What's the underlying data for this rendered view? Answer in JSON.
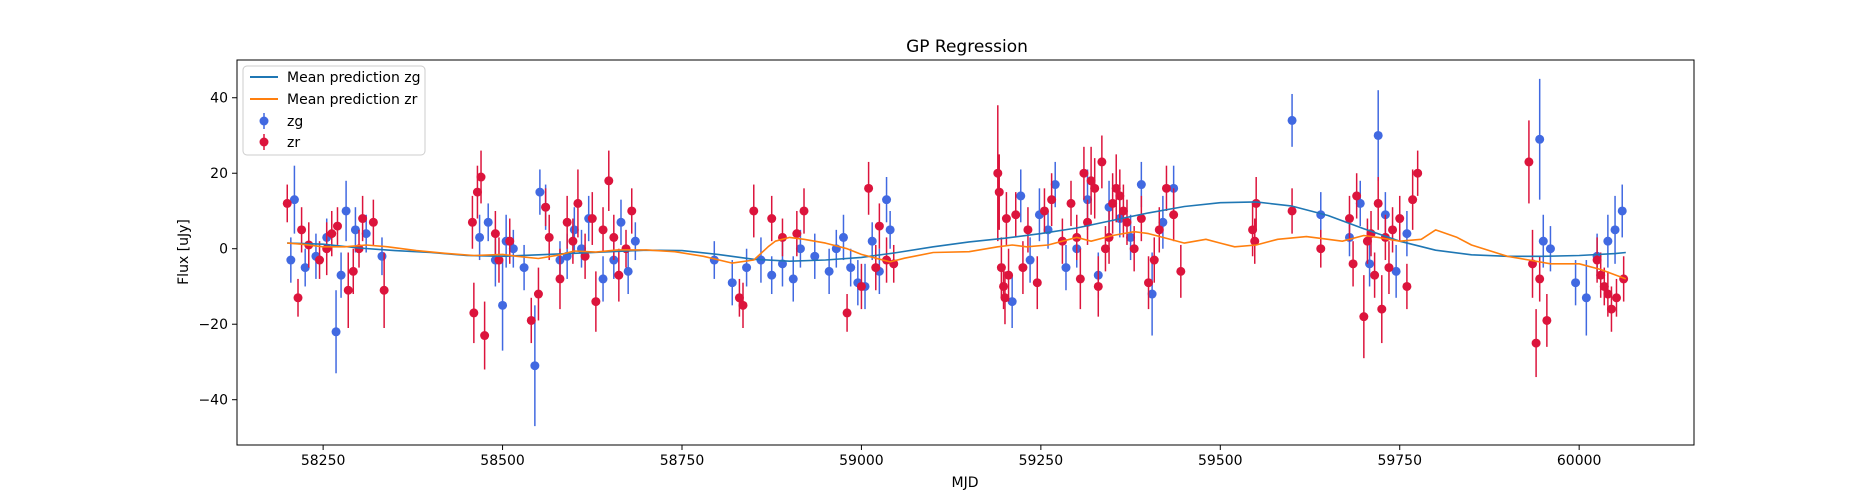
{
  "chart_data": {
    "type": "scatter",
    "title": "GP Regression",
    "xlabel": "MJD",
    "ylabel": "Flux [uJy]",
    "xlim": [
      58130,
      60160
    ],
    "ylim": [
      -52,
      50
    ],
    "xticks": [
      58250,
      58500,
      58750,
      59000,
      59250,
      59500,
      59750,
      60000
    ],
    "yticks": [
      -40,
      -20,
      0,
      20,
      40
    ],
    "grid": false,
    "legend_position": "top-left",
    "colors": {
      "zg_line": "#1f77b4",
      "zr_line": "#ff7f0e",
      "zg_points": "#4169e1",
      "zr_points": "#dc143c"
    },
    "lines": [
      {
        "name": "Mean prediction zg",
        "x": [
          58200,
          58250,
          58300,
          58350,
          58400,
          58450,
          58500,
          58550,
          58600,
          58650,
          58700,
          58750,
          58800,
          58850,
          58900,
          58950,
          59000,
          59050,
          59100,
          59150,
          59200,
          59250,
          59300,
          59350,
          59400,
          59450,
          59500,
          59550,
          59600,
          59650,
          59700,
          59750,
          59800,
          59850,
          59900,
          59950,
          60000,
          60050,
          60065
        ],
        "y": [
          1.5,
          1.2,
          0.2,
          -0.5,
          -1.0,
          -1.8,
          -2.0,
          -1.6,
          -1.2,
          -0.8,
          -0.4,
          -0.5,
          -1.5,
          -2.8,
          -3.3,
          -3.0,
          -2.3,
          -1.0,
          0.5,
          1.8,
          2.8,
          4.0,
          5.5,
          7.5,
          9.5,
          11.2,
          12.2,
          12.4,
          11.3,
          8.8,
          5.3,
          2.0,
          -0.4,
          -1.6,
          -2.0,
          -2.0,
          -1.8,
          -1.3,
          -1.0
        ]
      },
      {
        "name": "Mean prediction zr",
        "x": [
          58200,
          58220,
          58250,
          58280,
          58310,
          58340,
          58380,
          58420,
          58460,
          58500,
          58520,
          58550,
          58580,
          58600,
          58630,
          58660,
          58700,
          58740,
          58780,
          58820,
          58850,
          58870,
          58880,
          58900,
          58920,
          58950,
          58980,
          59000,
          59020,
          59040,
          59060,
          59100,
          59150,
          59190,
          59210,
          59230,
          59260,
          59290,
          59300,
          59320,
          59350,
          59380,
          59400,
          59420,
          59450,
          59480,
          59500,
          59520,
          59550,
          59580,
          59620,
          59650,
          59670,
          59700,
          59720,
          59750,
          59780,
          59800,
          59830,
          59850,
          59900,
          59930,
          59960,
          60000,
          60030,
          60065
        ],
        "y": [
          1.5,
          1.2,
          0.5,
          0.5,
          1.0,
          0.5,
          -0.5,
          -1.2,
          -1.8,
          -1.5,
          -2.0,
          -2.6,
          -1.6,
          -0.6,
          -0.9,
          -0.3,
          -0.3,
          -0.8,
          -2.0,
          -3.8,
          -3.0,
          0.5,
          2.0,
          3.0,
          2.5,
          1.5,
          0.0,
          -1.5,
          -2.5,
          -3.5,
          -2.5,
          -1.0,
          -0.8,
          0.5,
          1.0,
          0.5,
          1.0,
          2.5,
          3.0,
          2.0,
          3.5,
          4.5,
          4.0,
          3.0,
          1.5,
          2.5,
          1.5,
          0.5,
          1.0,
          2.5,
          3.2,
          2.5,
          2.0,
          3.5,
          3.0,
          2.0,
          2.5,
          5.0,
          3.0,
          1.0,
          -2.0,
          -3.0,
          -4.0,
          -4.0,
          -5.5,
          -8.0
        ]
      }
    ],
    "series": [
      {
        "name": "zg",
        "x": [
          58205,
          58210,
          58225,
          58240,
          58255,
          58268,
          58275,
          58282,
          58295,
          58310,
          58332,
          58468,
          58480,
          58490,
          58500,
          58505,
          58515,
          58530,
          58545,
          58552,
          58560,
          58580,
          58590,
          58600,
          58610,
          58620,
          58640,
          58655,
          58665,
          58675,
          58685,
          58795,
          58820,
          58840,
          58860,
          58875,
          58890,
          58905,
          58915,
          58935,
          58955,
          58965,
          58975,
          58985,
          58995,
          59005,
          59015,
          59025,
          59035,
          59040,
          59210,
          59222,
          59235,
          59248,
          59260,
          59270,
          59285,
          59300,
          59315,
          59330,
          59345,
          59360,
          59375,
          59390,
          59405,
          59420,
          59435,
          59600,
          59640,
          59680,
          59695,
          59708,
          59720,
          59730,
          59745,
          59760,
          59945,
          59950,
          59960,
          59995,
          60010,
          60025,
          60040,
          60050,
          60060
        ],
        "y": [
          -3,
          13,
          -5,
          -2,
          3,
          -22,
          -7,
          10,
          5,
          4,
          -2,
          3,
          7,
          -3,
          -15,
          2,
          0,
          -5,
          -31,
          15,
          11,
          -3,
          -2,
          5,
          0,
          8,
          -8,
          -3,
          7,
          -6,
          2,
          -3,
          -9,
          -5,
          -3,
          -7,
          -4,
          -8,
          0,
          -2,
          -6,
          0,
          3,
          -5,
          -9,
          -10,
          2,
          -6,
          13,
          5,
          -14,
          14,
          -3,
          9,
          5,
          17,
          -5,
          0,
          13,
          -7,
          11,
          8,
          3,
          17,
          -12,
          7,
          16,
          34,
          9,
          3,
          12,
          -4,
          30,
          9,
          -6,
          4,
          29,
          2,
          0,
          -9,
          -13,
          -2,
          2,
          5,
          10
        ],
        "err": [
          6,
          9,
          5,
          6,
          5,
          11,
          6,
          8,
          6,
          5,
          5,
          6,
          5,
          7,
          12,
          7,
          5,
          6,
          16,
          6,
          6,
          5,
          6,
          6,
          5,
          6,
          6,
          5,
          6,
          6,
          5,
          5,
          6,
          5,
          6,
          5,
          6,
          6,
          5,
          6,
          6,
          5,
          6,
          5,
          6,
          6,
          5,
          6,
          6,
          5,
          7,
          7,
          6,
          7,
          5,
          6,
          6,
          5,
          8,
          6,
          7,
          5,
          6,
          6,
          11,
          7,
          6,
          7,
          6,
          5,
          6,
          6,
          12,
          6,
          7,
          6,
          16,
          7,
          6,
          6,
          10,
          6,
          7,
          9,
          7
        ]
      },
      {
        "name": "zr",
        "x": [
          58200,
          58215,
          58220,
          58230,
          58245,
          58255,
          58262,
          58270,
          58285,
          58292,
          58300,
          58305,
          58320,
          58335,
          58458,
          58460,
          58465,
          58470,
          58475,
          58490,
          58495,
          58510,
          58540,
          58550,
          58560,
          58565,
          58580,
          58590,
          58598,
          58605,
          58615,
          58625,
          58630,
          58640,
          58648,
          58655,
          58662,
          58672,
          58680,
          58830,
          58835,
          58850,
          58875,
          58890,
          58910,
          58920,
          58980,
          59000,
          59010,
          59020,
          59025,
          59035,
          59045,
          59190,
          59192,
          59195,
          59198,
          59200,
          59202,
          59205,
          59215,
          59225,
          59232,
          59245,
          59255,
          59265,
          59280,
          59292,
          59300,
          59305,
          59310,
          59315,
          59320,
          59325,
          59330,
          59335,
          59340,
          59345,
          59350,
          59355,
          59360,
          59365,
          59370,
          59380,
          59390,
          59400,
          59408,
          59415,
          59425,
          59435,
          59445,
          59545,
          59548,
          59550,
          59600,
          59640,
          59680,
          59685,
          59690,
          59700,
          59705,
          59710,
          59715,
          59720,
          59725,
          59730,
          59735,
          59740,
          59750,
          59760,
          59768,
          59775,
          59930,
          59935,
          59940,
          59945,
          59955,
          60025,
          60030,
          60035,
          60040,
          60045,
          60052,
          60062
        ],
        "y": [
          12,
          -13,
          5,
          1,
          -3,
          0,
          4,
          6,
          -11,
          -6,
          0,
          8,
          7,
          -11,
          7,
          -17,
          15,
          19,
          -23,
          4,
          -3,
          2,
          -19,
          -12,
          11,
          3,
          -8,
          7,
          2,
          12,
          -2,
          8,
          -14,
          5,
          18,
          3,
          -7,
          0,
          10,
          -13,
          -15,
          10,
          8,
          3,
          4,
          10,
          -17,
          -10,
          16,
          -5,
          6,
          -3,
          -4,
          20,
          15,
          -5,
          -10,
          -13,
          8,
          -7,
          9,
          -5,
          5,
          -9,
          10,
          13,
          2,
          12,
          3,
          -8,
          20,
          7,
          18,
          16,
          -10,
          23,
          0,
          3,
          12,
          16,
          14,
          10,
          7,
          0,
          8,
          -9,
          -3,
          5,
          16,
          9,
          -6,
          5,
          2,
          12,
          10,
          0,
          8,
          -4,
          14,
          -18,
          2,
          4,
          -7,
          12,
          -16,
          3,
          -5,
          5,
          8,
          -10,
          13,
          20,
          23,
          -4,
          -25,
          -8,
          -19,
          -3,
          -7,
          -10,
          -12,
          -16,
          -13,
          -8
        ],
        "err": [
          5,
          5,
          6,
          6,
          5,
          7,
          6,
          5,
          10,
          6,
          5,
          6,
          6,
          10,
          7,
          8,
          7,
          7,
          9,
          6,
          6,
          6,
          6,
          7,
          5,
          6,
          8,
          7,
          6,
          9,
          6,
          7,
          8,
          6,
          8,
          6,
          7,
          5,
          6,
          5,
          6,
          7,
          6,
          5,
          6,
          6,
          5,
          6,
          7,
          6,
          6,
          6,
          5,
          18,
          10,
          8,
          6,
          7,
          7,
          7,
          6,
          7,
          6,
          7,
          6,
          7,
          6,
          6,
          6,
          8,
          7,
          6,
          9,
          8,
          8,
          7,
          6,
          7,
          8,
          9,
          7,
          7,
          6,
          6,
          6,
          7,
          6,
          6,
          6,
          7,
          7,
          7,
          6,
          7,
          6,
          5,
          6,
          6,
          6,
          11,
          6,
          6,
          6,
          7,
          9,
          6,
          7,
          6,
          6,
          6,
          8,
          6,
          11,
          9,
          9,
          6,
          7,
          6,
          6,
          5,
          6,
          6,
          5,
          6
        ]
      }
    ]
  }
}
